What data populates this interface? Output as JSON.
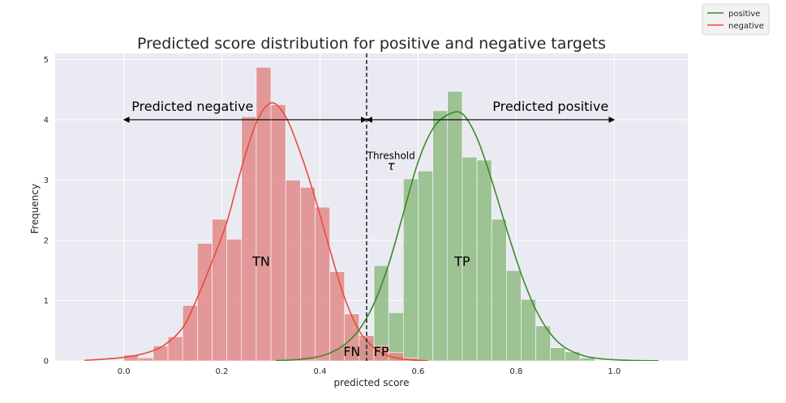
{
  "chart_data": {
    "type": "histogram",
    "title": "Predicted score distribution for positive and negative targets",
    "xlabel": "predicted score",
    "ylabel": "Frequency",
    "xlim": [
      -0.14,
      1.15
    ],
    "ylim": [
      0,
      5.1
    ],
    "xticks": [
      "0.0",
      "0.2",
      "0.4",
      "0.6",
      "0.8",
      "1.0"
    ],
    "yticks": [
      "0",
      "1",
      "2",
      "3",
      "4",
      "5"
    ],
    "grid": true,
    "legend_placement": "top-right",
    "threshold": 0.495,
    "series": [
      {
        "name": "negative",
        "color": "#e74c3c",
        "bar_color": "#e08a8a",
        "bin_width": 0.03,
        "bins": [
          {
            "x0": 0.0,
            "h": 0.1
          },
          {
            "x0": 0.03,
            "h": 0.05
          },
          {
            "x0": 0.06,
            "h": 0.25
          },
          {
            "x0": 0.09,
            "h": 0.4
          },
          {
            "x0": 0.12,
            "h": 0.92
          },
          {
            "x0": 0.15,
            "h": 1.95
          },
          {
            "x0": 0.18,
            "h": 2.35
          },
          {
            "x0": 0.21,
            "h": 2.02
          },
          {
            "x0": 0.24,
            "h": 4.05
          },
          {
            "x0": 0.27,
            "h": 4.87
          },
          {
            "x0": 0.3,
            "h": 4.25
          },
          {
            "x0": 0.33,
            "h": 3.0
          },
          {
            "x0": 0.36,
            "h": 2.88
          },
          {
            "x0": 0.39,
            "h": 2.55
          },
          {
            "x0": 0.42,
            "h": 1.48
          },
          {
            "x0": 0.45,
            "h": 0.78
          },
          {
            "x0": 0.48,
            "h": 0.42
          },
          {
            "x0": 0.51,
            "h": 0.25
          },
          {
            "x0": 0.54,
            "h": 0.14
          },
          {
            "x0": 0.57,
            "h": 0.05
          }
        ],
        "kde": [
          [
            -0.08,
            0.01
          ],
          [
            -0.04,
            0.03
          ],
          [
            0.0,
            0.06
          ],
          [
            0.04,
            0.12
          ],
          [
            0.08,
            0.25
          ],
          [
            0.12,
            0.55
          ],
          [
            0.15,
            1.05
          ],
          [
            0.18,
            1.65
          ],
          [
            0.21,
            2.3
          ],
          [
            0.24,
            3.2
          ],
          [
            0.27,
            3.95
          ],
          [
            0.3,
            4.28
          ],
          [
            0.33,
            4.05
          ],
          [
            0.36,
            3.45
          ],
          [
            0.39,
            2.7
          ],
          [
            0.42,
            1.85
          ],
          [
            0.45,
            1.05
          ],
          [
            0.48,
            0.5
          ],
          [
            0.51,
            0.22
          ],
          [
            0.54,
            0.08
          ],
          [
            0.58,
            0.02
          ],
          [
            0.62,
            0.005
          ]
        ]
      },
      {
        "name": "positive",
        "color": "#3a8a2a",
        "bar_color": "#8fbb84",
        "bin_width": 0.03,
        "bins": [
          {
            "x0": 0.42,
            "h": 0.2
          },
          {
            "x0": 0.45,
            "h": 0.25
          },
          {
            "x0": 0.48,
            "h": 0.35
          },
          {
            "x0": 0.51,
            "h": 1.58
          },
          {
            "x0": 0.54,
            "h": 0.8
          },
          {
            "x0": 0.57,
            "h": 3.02
          },
          {
            "x0": 0.6,
            "h": 3.15
          },
          {
            "x0": 0.63,
            "h": 4.15
          },
          {
            "x0": 0.66,
            "h": 4.47
          },
          {
            "x0": 0.69,
            "h": 3.38
          },
          {
            "x0": 0.72,
            "h": 3.33
          },
          {
            "x0": 0.75,
            "h": 2.35
          },
          {
            "x0": 0.78,
            "h": 1.5
          },
          {
            "x0": 0.81,
            "h": 1.02
          },
          {
            "x0": 0.84,
            "h": 0.58
          },
          {
            "x0": 0.87,
            "h": 0.22
          },
          {
            "x0": 0.9,
            "h": 0.15
          },
          {
            "x0": 0.93,
            "h": 0.05
          }
        ],
        "kde": [
          [
            0.31,
            0.005
          ],
          [
            0.35,
            0.02
          ],
          [
            0.39,
            0.06
          ],
          [
            0.42,
            0.13
          ],
          [
            0.45,
            0.27
          ],
          [
            0.48,
            0.52
          ],
          [
            0.51,
            0.95
          ],
          [
            0.54,
            1.6
          ],
          [
            0.57,
            2.45
          ],
          [
            0.6,
            3.3
          ],
          [
            0.63,
            3.85
          ],
          [
            0.66,
            4.08
          ],
          [
            0.69,
            4.1
          ],
          [
            0.72,
            3.7
          ],
          [
            0.75,
            3.0
          ],
          [
            0.78,
            2.2
          ],
          [
            0.81,
            1.45
          ],
          [
            0.84,
            0.85
          ],
          [
            0.87,
            0.45
          ],
          [
            0.9,
            0.22
          ],
          [
            0.94,
            0.08
          ],
          [
            0.98,
            0.03
          ],
          [
            1.03,
            0.01
          ],
          [
            1.09,
            0.002
          ]
        ]
      }
    ],
    "annotations": [
      {
        "text": "Predicted negative",
        "x": 0.14,
        "y": 4.15
      },
      {
        "text": "Predicted positive",
        "x": 0.87,
        "y": 4.15
      },
      {
        "text": "Threshold",
        "x": 0.545,
        "y": 3.35
      },
      {
        "text": "τ",
        "x": 0.545,
        "y": 3.17
      },
      {
        "text": "TN",
        "x": 0.28,
        "y": 1.58
      },
      {
        "text": "TP",
        "x": 0.69,
        "y": 1.58
      },
      {
        "text": "FN",
        "x": 0.465,
        "y": 0.08
      },
      {
        "text": "FP",
        "x": 0.525,
        "y": 0.08
      }
    ],
    "arrows": [
      {
        "from": 0.0,
        "to": 0.495,
        "y": 4.0
      },
      {
        "from": 0.495,
        "to": 1.0,
        "y": 4.0
      }
    ]
  }
}
